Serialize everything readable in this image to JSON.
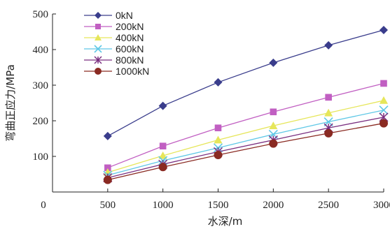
{
  "chart_data": {
    "type": "line",
    "xlabel": "水深/m",
    "ylabel": "弯曲正应力/MPa",
    "x": [
      500,
      1000,
      1500,
      2000,
      2500,
      3000
    ],
    "xlim": [
      0,
      3000
    ],
    "ylim": [
      0,
      500
    ],
    "xticks": [
      0,
      500,
      1000,
      1500,
      2000,
      2500,
      3000
    ],
    "yticks": [
      100,
      200,
      300,
      400,
      500
    ],
    "grid": false,
    "legend_position": "top-left",
    "series": [
      {
        "name": "0kN",
        "values": [
          157,
          242,
          308,
          363,
          412,
          455
        ],
        "color": "#3a3d8c",
        "marker": "diamond"
      },
      {
        "name": "200kN",
        "values": [
          68,
          129,
          180,
          225,
          266,
          305
        ],
        "color": "#c15fc2",
        "marker": "square"
      },
      {
        "name": "400kN",
        "values": [
          55,
          102,
          146,
          186,
          222,
          257
        ],
        "color": "#e6e65a",
        "marker": "triangle"
      },
      {
        "name": "600kN",
        "values": [
          47,
          88,
          124,
          162,
          197,
          230
        ],
        "color": "#5fc8e6",
        "marker": "x"
      },
      {
        "name": "800kN",
        "values": [
          40,
          78,
          113,
          146,
          180,
          210
        ],
        "color": "#7a2f80",
        "marker": "star"
      },
      {
        "name": "1000kN",
        "values": [
          34,
          70,
          104,
          136,
          165,
          193
        ],
        "color": "#8a2a22",
        "marker": "circle"
      }
    ]
  }
}
